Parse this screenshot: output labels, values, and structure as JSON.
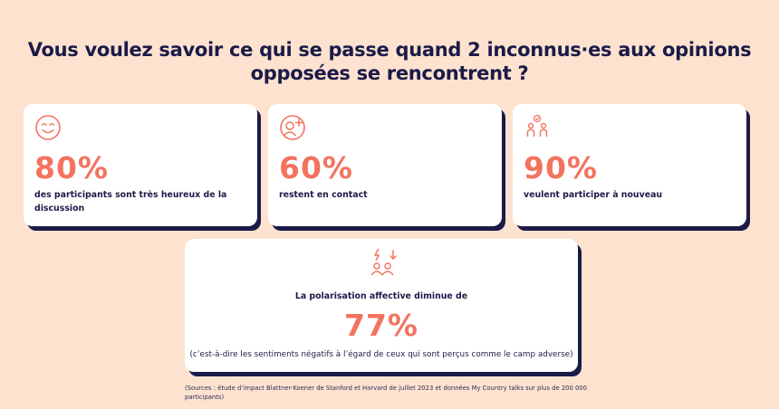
{
  "headline": "Vous voulez savoir ce qui se passe quand 2 inconnus·es aux opinions opposées se rencontrent ?",
  "colors": {
    "background": "#fde3cf",
    "accent": "#f3735f",
    "text": "#1b1a48",
    "card": "#ffffff"
  },
  "stats": [
    {
      "icon": "smiley-face-icon",
      "value": "80%",
      "description": "des participants sont très heureux de la discussion"
    },
    {
      "icon": "add-person-icon",
      "value": "60%",
      "description": "restent en contact"
    },
    {
      "icon": "two-people-check-icon",
      "value": "90%",
      "description": "veulent participer à nouveau"
    }
  ],
  "highlight": {
    "icon": "people-lightning-down-icon",
    "label": "La polarisation affective diminue de",
    "value": "77%",
    "note": "(c’est-à-dire les sentiments négatifs à l’égard de ceux qui sont perçus comme le camp adverse)"
  },
  "sources": "(Sources : étude d’impact Blattner-Koener de Stanford et Harvard de juillet 2023 et données My Country talks sur plus de 200 000 participants)"
}
